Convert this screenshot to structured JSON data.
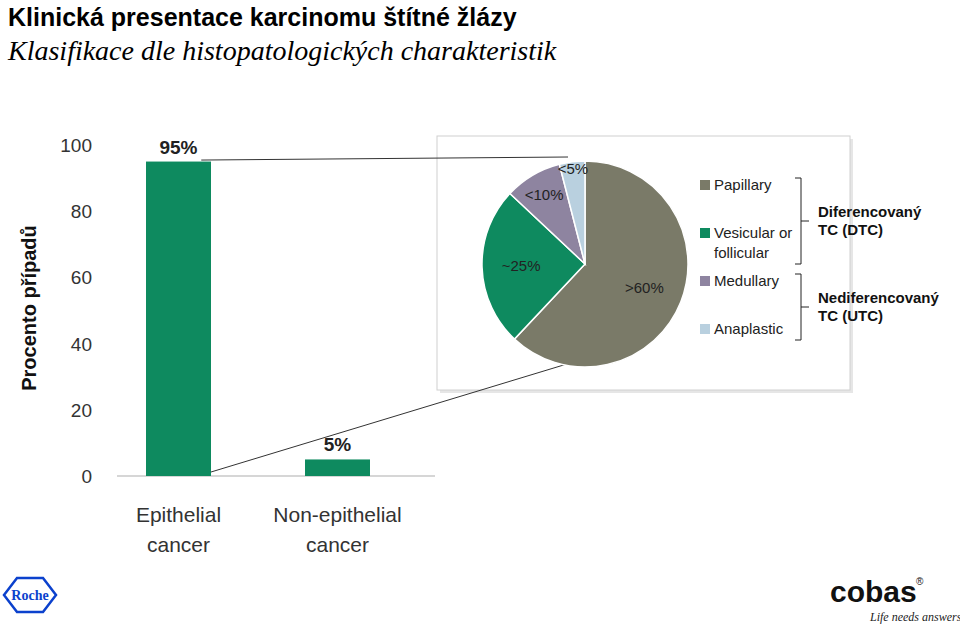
{
  "chart_data": [
    {
      "type": "bar",
      "title": "Klinická presentace karcinomu štítné žlázy",
      "subtitle": "Klasifikace dle histopatologických charakteristik",
      "y_label": "Procento případů",
      "categories": [
        "Epithelial cancer",
        "Non-epithelial cancer"
      ],
      "values": [
        95,
        5
      ],
      "value_labels": [
        "95%",
        "5%"
      ],
      "data_labels": true,
      "color": "#0e8a5f",
      "ylim": [
        0,
        100
      ],
      "yticks": [
        0,
        20,
        40,
        60,
        80,
        100
      ],
      "grid": false
    },
    {
      "type": "pie",
      "categories": [
        "Papillary",
        "Vesicular or follicular",
        "Medullary",
        "Anaplastic"
      ],
      "values": [
        62,
        25,
        9,
        4
      ],
      "value_labels": [
        ">60%",
        "~25%",
        "<10%",
        "<5%"
      ],
      "data_labels": true,
      "colors": [
        "#7a7a68",
        "#0e8a5f",
        "#8e84a0",
        "#b9d0df"
      ],
      "legend": "right",
      "groups": [
        {
          "label": "Diferencovaný TC (DTC)",
          "members": [
            "Papillary",
            "Vesicular or follicular"
          ]
        },
        {
          "label": "Nediferencovaný TC (UTC)",
          "members": [
            "Medullary",
            "Anaplastic"
          ]
        }
      ]
    }
  ],
  "footer": {
    "left_logo": "Roche",
    "right_logo": "cobas",
    "right_logo_mark": "®",
    "tagline": "Life needs answers"
  }
}
